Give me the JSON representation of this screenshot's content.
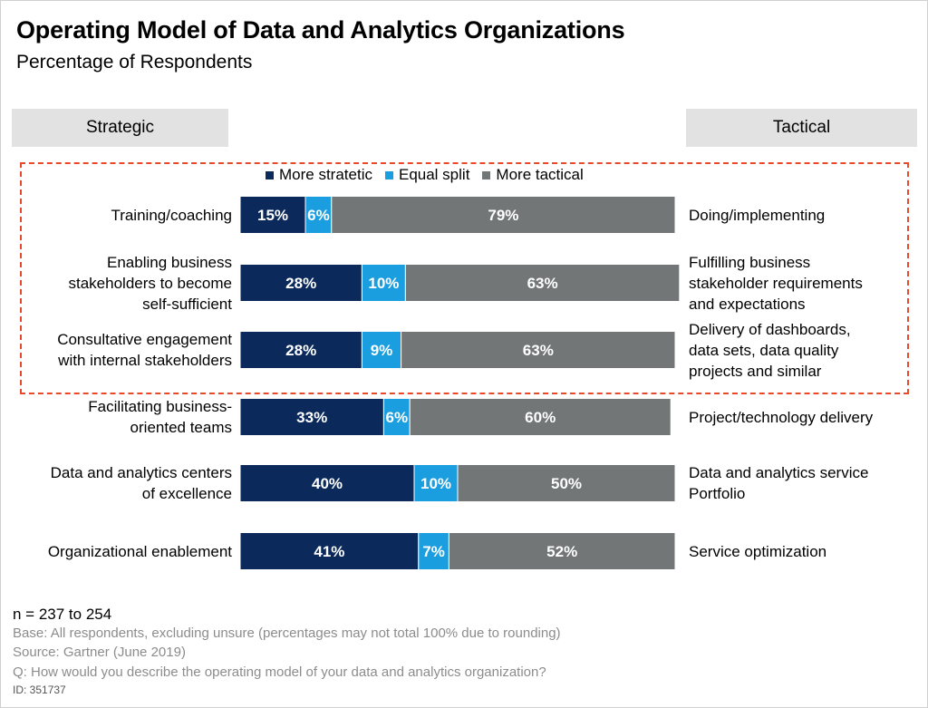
{
  "title": "Operating Model of Data and Analytics Organizations",
  "subtitle": "Percentage of Respondents",
  "headers": {
    "left": "Strategic",
    "right": "Tactical"
  },
  "colors": {
    "strategic": "#0b2a5b",
    "equal": "#1a9ee0",
    "tactical": "#727677"
  },
  "chart_data": {
    "type": "bar",
    "orientation": "horizontal-stacked",
    "categories": [
      "Training/coaching",
      "Enabling business stakeholders to become self-sufficient",
      "Consultative engagement with internal stakeholders",
      "Facilitating business-oriented teams",
      "Data and analytics centers of excellence",
      "Organizational enablement"
    ],
    "category_lines": [
      [
        "Training/coaching"
      ],
      [
        "Enabling business",
        "stakeholders to become",
        "self-sufficient"
      ],
      [
        "Consultative engagement",
        "with internal stakeholders"
      ],
      [
        "Facilitating business-",
        "oriented teams"
      ],
      [
        "Data and analytics centers",
        "of excellence"
      ],
      [
        "Organizational enablement"
      ]
    ],
    "tactical_labels": [
      [
        "Doing/implementing"
      ],
      [
        "Fulfilling business",
        "stakeholder requirements",
        "and expectations"
      ],
      [
        "Delivery of dashboards,",
        "data sets, data quality",
        "projects and similar"
      ],
      [
        "Project/technology delivery"
      ],
      [
        "Data and analytics service",
        "Portfolio"
      ],
      [
        "Service optimization"
      ]
    ],
    "series": [
      {
        "name": "More stratetic",
        "values": [
          15,
          28,
          28,
          33,
          40,
          41
        ]
      },
      {
        "name": "Equal split",
        "values": [
          6,
          10,
          9,
          6,
          10,
          7
        ]
      },
      {
        "name": "More tactical",
        "values": [
          79,
          63,
          63,
          60,
          50,
          52
        ]
      }
    ],
    "xlim": [
      0,
      100
    ],
    "legend": "top"
  },
  "footer": {
    "n": "n = 237 to 254",
    "base": "Base: All respondents, excluding unsure (percentages may not total 100% due to rounding)",
    "source": "Source: Gartner (June 2019)",
    "question": "Q: How would you describe the operating model of your data and analytics organization?",
    "id": "ID: 351737"
  }
}
